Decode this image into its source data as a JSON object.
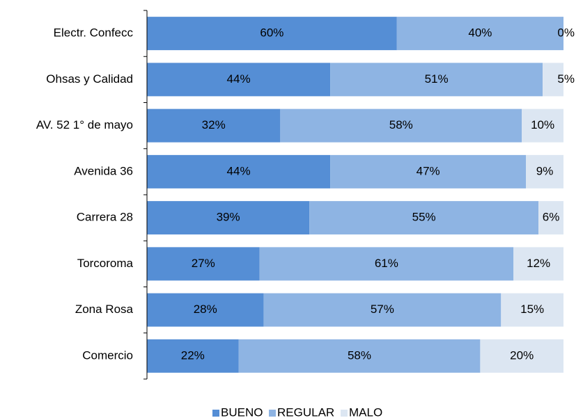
{
  "chart_data": {
    "type": "stacked_barh",
    "categories": [
      "Electr. Confecc",
      "Ohsas y Calidad",
      "AV. 52 1° de mayo",
      "Avenida 36",
      "Carrera 28",
      "Torcoroma",
      "Zona Rosa",
      "Comercio"
    ],
    "series": [
      {
        "name": "BUENO",
        "color": "#558ed5",
        "values": [
          60,
          44,
          32,
          44,
          39,
          27,
          28,
          22
        ],
        "value_labels": [
          "60%",
          "44%",
          "32%",
          "44%",
          "39%",
          "27%",
          "28%",
          "22%"
        ]
      },
      {
        "name": "REGULAR",
        "color": "#8eb4e3",
        "values": [
          40,
          51,
          58,
          47,
          55,
          61,
          57,
          58
        ],
        "value_labels": [
          "40%",
          "51%",
          "58%",
          "47%",
          "55%",
          "61%",
          "57%",
          "58%"
        ]
      },
      {
        "name": "MALO",
        "color": "#dce6f2",
        "values": [
          0,
          5,
          10,
          9,
          6,
          12,
          15,
          20
        ],
        "value_labels": [
          "0%",
          "5%",
          "10%",
          "9%",
          "6%",
          "12%",
          "15%",
          "20%"
        ]
      }
    ],
    "xlim": [
      0,
      100
    ],
    "legend": "bottom"
  }
}
